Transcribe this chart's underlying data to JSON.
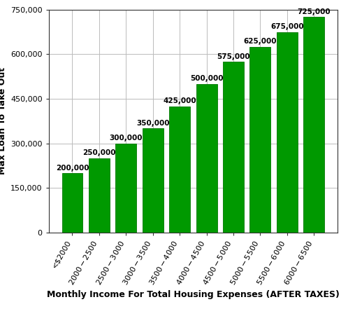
{
  "categories": [
    "<$2000",
    "$2000-$2500",
    "$2500-$3000",
    "$3000-$3500",
    "$3500-$4000",
    "$4000-$4500",
    "$4500-$5000",
    "$5000-$5500",
    "$5500-$6000",
    "$6000-$6500"
  ],
  "values": [
    200000,
    250000,
    300000,
    350000,
    425000,
    500000,
    575000,
    625000,
    675000,
    725000
  ],
  "bar_color": "#009900",
  "bar_edge_color": "#007700",
  "xlabel": "Monthly Income For Total Housing Expenses (AFTER TAXES)",
  "ylabel": "Max Loan To Take Out",
  "ylim": [
    0,
    750000
  ],
  "yticks": [
    0,
    150000,
    300000,
    450000,
    600000,
    750000
  ],
  "title": "",
  "tick_fontsize": 8,
  "xlabel_fontsize": 9,
  "ylabel_fontsize": 9,
  "annotation_fontsize": 7.5,
  "bar_width": 0.78,
  "background_color": "#ffffff",
  "grid_color": "#bbbbbb"
}
